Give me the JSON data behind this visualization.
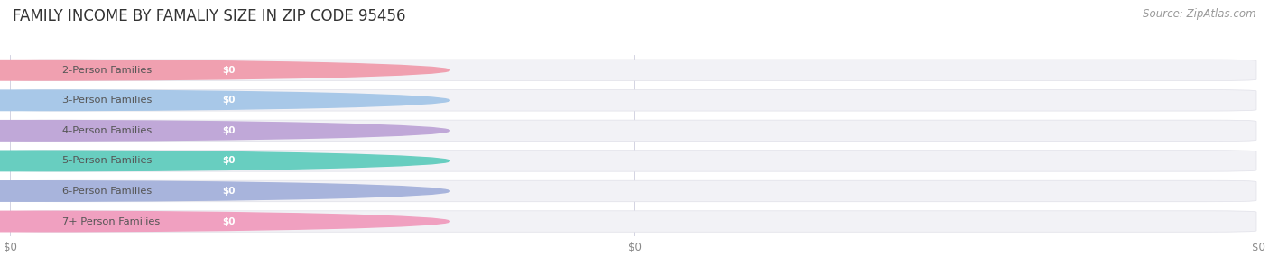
{
  "title": "FAMILY INCOME BY FAMALIY SIZE IN ZIP CODE 95456",
  "source": "Source: ZipAtlas.com",
  "categories": [
    "2-Person Families",
    "3-Person Families",
    "4-Person Families",
    "5-Person Families",
    "6-Person Families",
    "7+ Person Families"
  ],
  "values": [
    0,
    0,
    0,
    0,
    0,
    0
  ],
  "bar_colors": [
    "#f0a0b0",
    "#a8c8e8",
    "#c0a8d8",
    "#68cec0",
    "#a8b4dc",
    "#f0a0c0"
  ],
  "bar_bg_color": "#f2f2f6",
  "bar_border_color": "#e0e0e8",
  "background_color": "#ffffff",
  "plot_bg_color": "#ffffff",
  "title_fontsize": 12,
  "tick_fontsize": 8.5,
  "source_fontsize": 8.5,
  "xlim": [
    0,
    1
  ],
  "xtick_positions": [
    0.0,
    0.5,
    1.0
  ],
  "xtick_labels": [
    "$0",
    "$0",
    "$0"
  ]
}
